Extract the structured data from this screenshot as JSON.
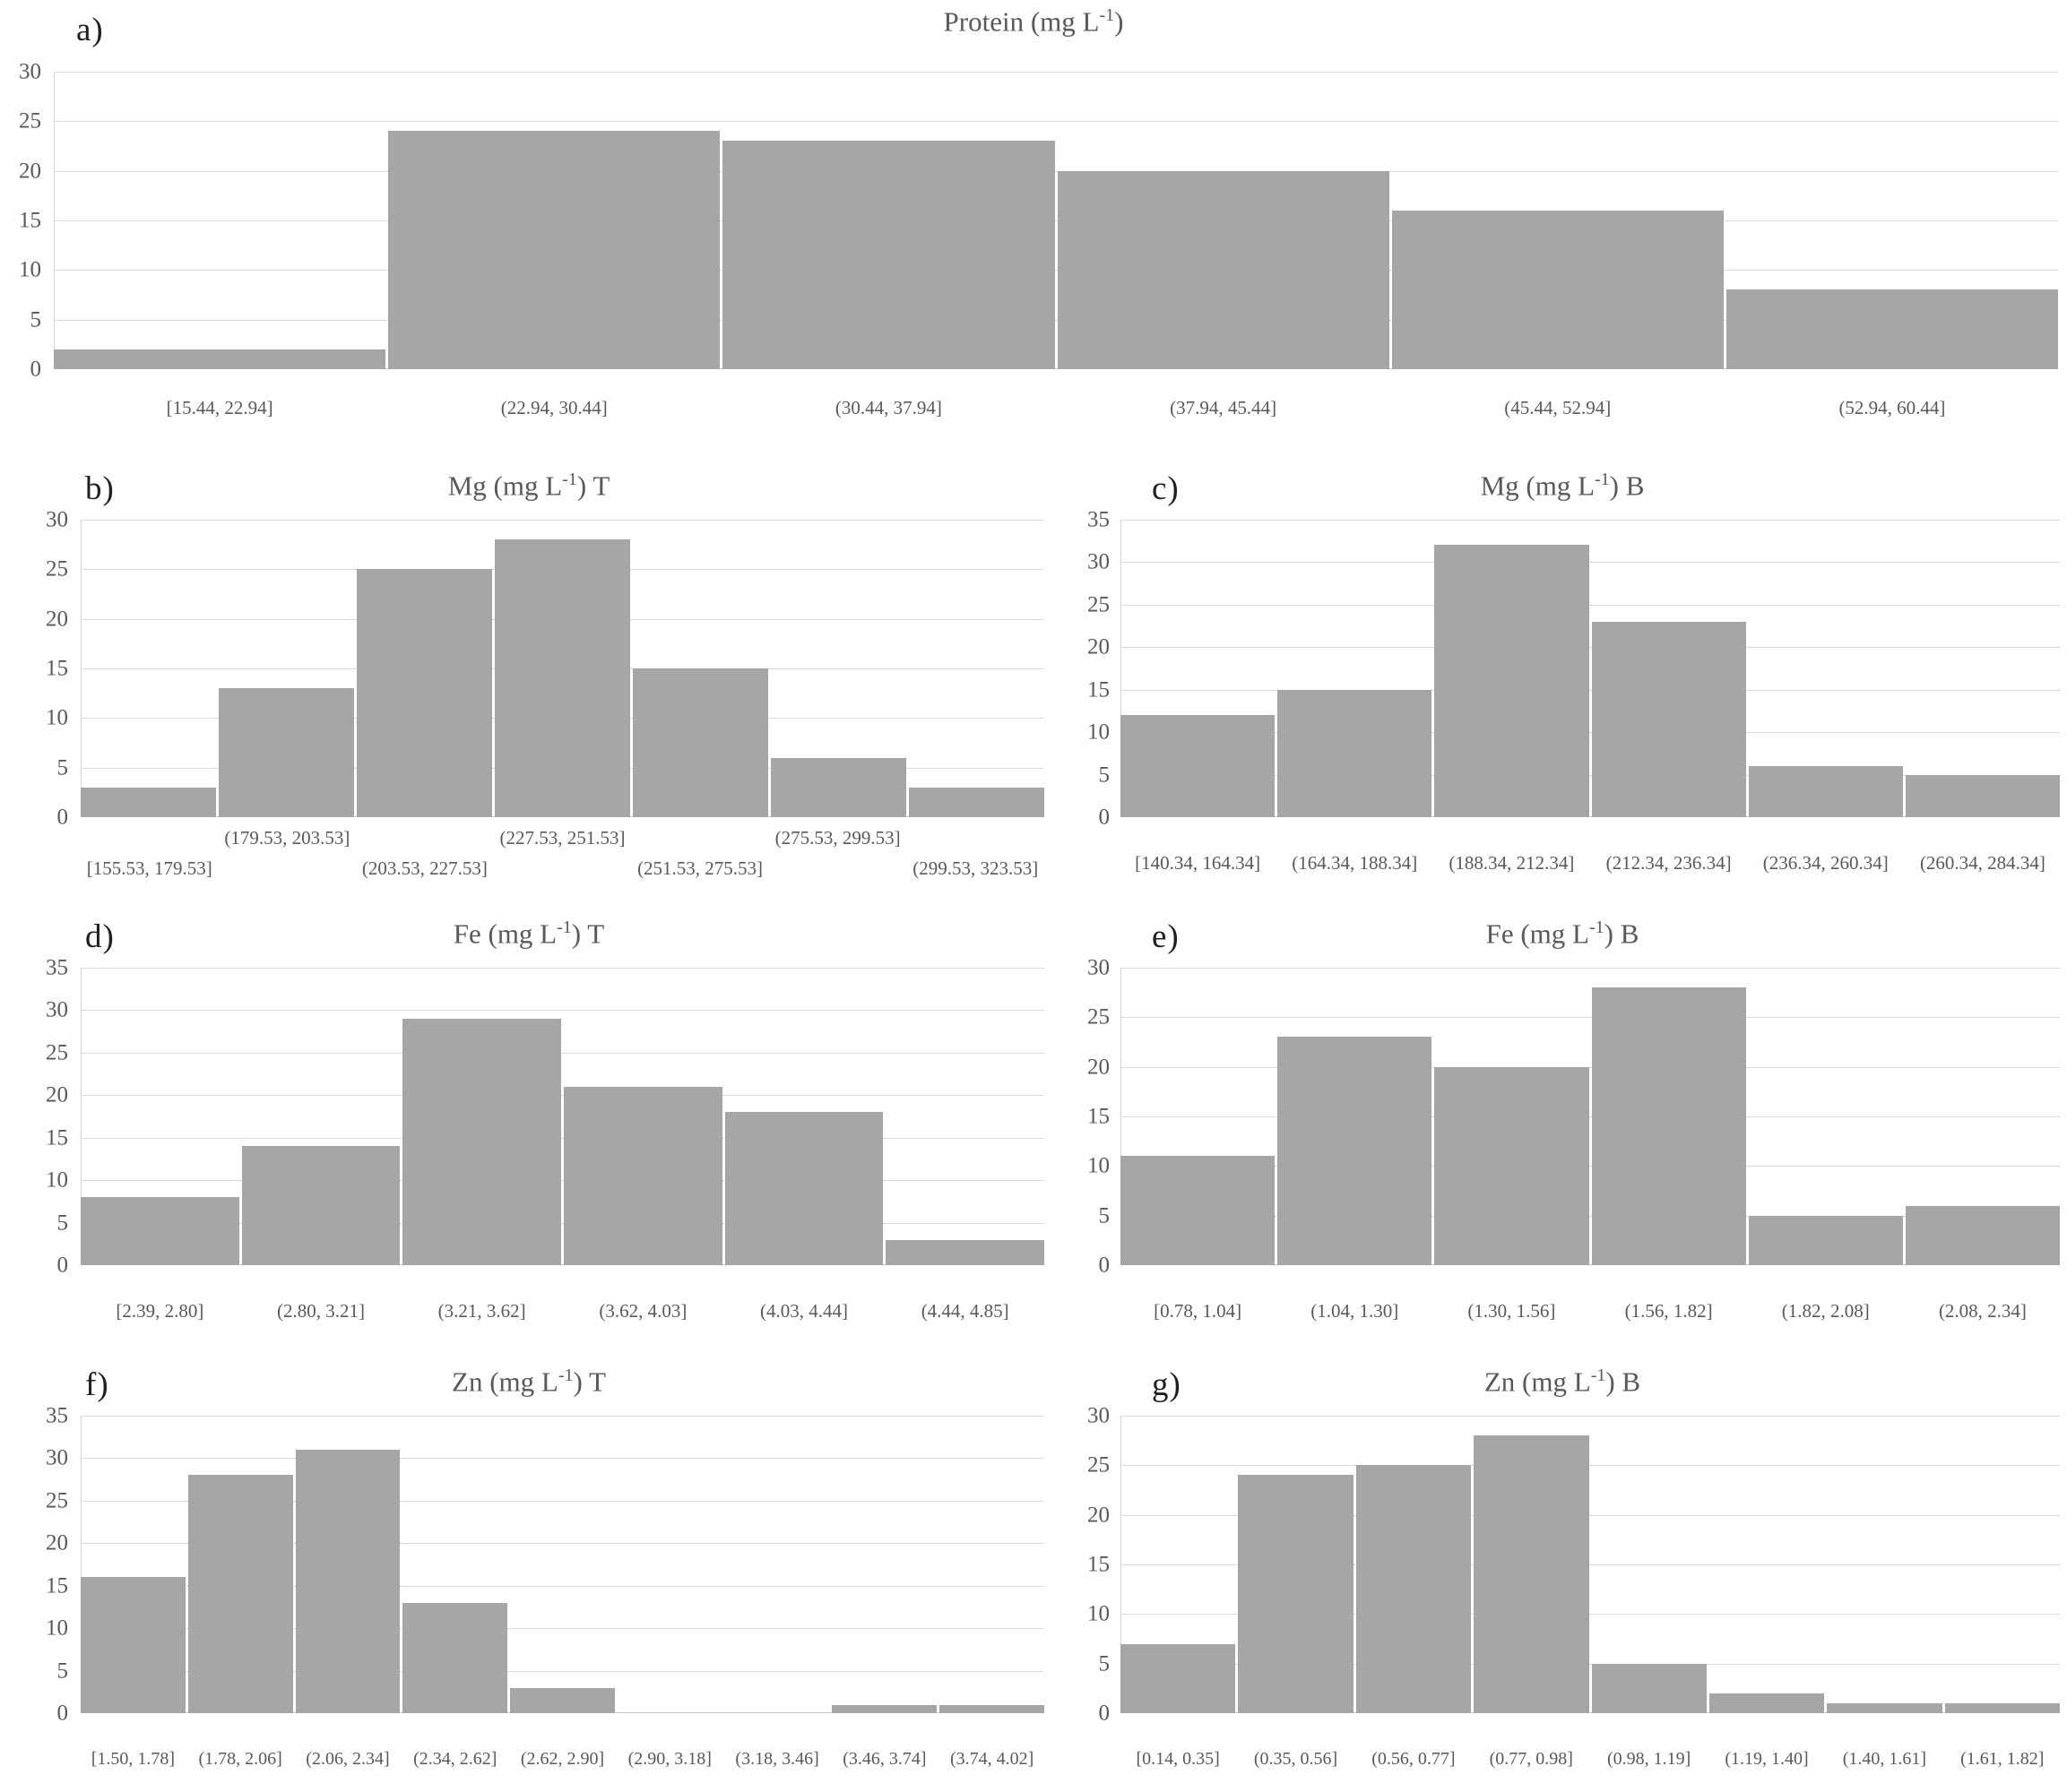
{
  "figure": {
    "background_color": "#ffffff",
    "bar_color": "#a6a6a6",
    "gridline_color": "#dadada",
    "axis_line_color": "#d6d6d6",
    "text_color": "#595959",
    "panel_letter_color": "#1f1f1f"
  },
  "chart_data": [
    {
      "id": "a",
      "letter": "a)",
      "type": "bar",
      "title_pre": "Protein (mg L",
      "title_sup": "-1",
      "title_post": ")",
      "ylim": [
        0,
        30
      ],
      "yticks": [
        0,
        5,
        10,
        15,
        20,
        25,
        30
      ],
      "grid": true,
      "legend": false,
      "stagger_labels": false,
      "categories": [
        "[15.44, 22.94]",
        "(22.94, 30.44]",
        "(30.44, 37.94]",
        "(37.94, 45.44]",
        "(45.44, 52.94]",
        "(52.94, 60.44]"
      ],
      "values": [
        2,
        24,
        23,
        20,
        16,
        8
      ]
    },
    {
      "id": "b",
      "letter": "b)",
      "type": "bar",
      "title_pre": "Mg (mg L",
      "title_sup": "-1",
      "title_post": ") T",
      "ylim": [
        0,
        30
      ],
      "yticks": [
        0,
        5,
        10,
        15,
        20,
        25,
        30
      ],
      "grid": true,
      "legend": false,
      "stagger_labels": true,
      "categories": [
        "[155.53, 179.53]",
        "(179.53, 203.53]",
        "(203.53, 227.53]",
        "(227.53, 251.53]",
        "(251.53, 275.53]",
        "(275.53, 299.53]",
        "(299.53, 323.53]"
      ],
      "values": [
        3,
        13,
        25,
        28,
        15,
        6,
        3
      ]
    },
    {
      "id": "c",
      "letter": "c)",
      "type": "bar",
      "title_pre": "Mg (mg L",
      "title_sup": "-1",
      "title_post": ") B",
      "ylim": [
        0,
        35
      ],
      "yticks": [
        0,
        5,
        10,
        15,
        20,
        25,
        30,
        35
      ],
      "grid": true,
      "legend": false,
      "stagger_labels": false,
      "categories": [
        "[140.34, 164.34]",
        "(164.34, 188.34]",
        "(188.34, 212.34]",
        "(212.34, 236.34]",
        "(236.34, 260.34]",
        "(260.34, 284.34]"
      ],
      "values": [
        12,
        15,
        32,
        23,
        6,
        5
      ]
    },
    {
      "id": "d",
      "letter": "d)",
      "type": "bar",
      "title_pre": "Fe (mg L",
      "title_sup": "-1",
      "title_post": ") T",
      "ylim": [
        0,
        35
      ],
      "yticks": [
        0,
        5,
        10,
        15,
        20,
        25,
        30,
        35
      ],
      "grid": true,
      "legend": false,
      "stagger_labels": false,
      "categories": [
        "[2.39, 2.80]",
        "(2.80, 3.21]",
        "(3.21, 3.62]",
        "(3.62, 4.03]",
        "(4.03, 4.44]",
        "(4.44, 4.85]"
      ],
      "values": [
        8,
        14,
        29,
        21,
        18,
        3
      ]
    },
    {
      "id": "e",
      "letter": "e)",
      "type": "bar",
      "title_pre": "Fe (mg L",
      "title_sup": "-1",
      "title_post": ") B",
      "ylim": [
        0,
        30
      ],
      "yticks": [
        0,
        5,
        10,
        15,
        20,
        25,
        30
      ],
      "grid": true,
      "legend": false,
      "stagger_labels": false,
      "categories": [
        "[0.78, 1.04]",
        "(1.04, 1.30]",
        "(1.30, 1.56]",
        "(1.56, 1.82]",
        "(1.82, 2.08]",
        "(2.08, 2.34]"
      ],
      "values": [
        11,
        23,
        20,
        28,
        5,
        6
      ]
    },
    {
      "id": "f",
      "letter": "f)",
      "type": "bar",
      "title_pre": "Zn (mg L",
      "title_sup": "-1",
      "title_post": ") T",
      "ylim": [
        0,
        35
      ],
      "yticks": [
        0,
        5,
        10,
        15,
        20,
        25,
        30,
        35
      ],
      "grid": true,
      "legend": false,
      "stagger_labels": false,
      "categories": [
        "[1.50, 1.78]",
        "(1.78, 2.06]",
        "(2.06, 2.34]",
        "(2.34, 2.62]",
        "(2.62, 2.90]",
        "(2.90, 3.18]",
        "(3.18, 3.46]",
        "(3.46, 3.74]",
        "(3.74, 4.02]"
      ],
      "values": [
        16,
        28,
        31,
        13,
        3,
        0,
        0,
        1,
        1
      ]
    },
    {
      "id": "g",
      "letter": "g)",
      "type": "bar",
      "title_pre": "Zn (mg L",
      "title_sup": "-1",
      "title_post": ") B",
      "ylim": [
        0,
        30
      ],
      "yticks": [
        0,
        5,
        10,
        15,
        20,
        25,
        30
      ],
      "grid": true,
      "legend": false,
      "stagger_labels": false,
      "categories": [
        "[0.14, 0.35]",
        "(0.35, 0.56]",
        "(0.56, 0.77]",
        "(0.77, 0.98]",
        "(0.98, 1.19]",
        "(1.19, 1.40]",
        "(1.40, 1.61]",
        "(1.61, 1.82]"
      ],
      "values": [
        7,
        24,
        25,
        28,
        5,
        2,
        1,
        1
      ]
    }
  ]
}
